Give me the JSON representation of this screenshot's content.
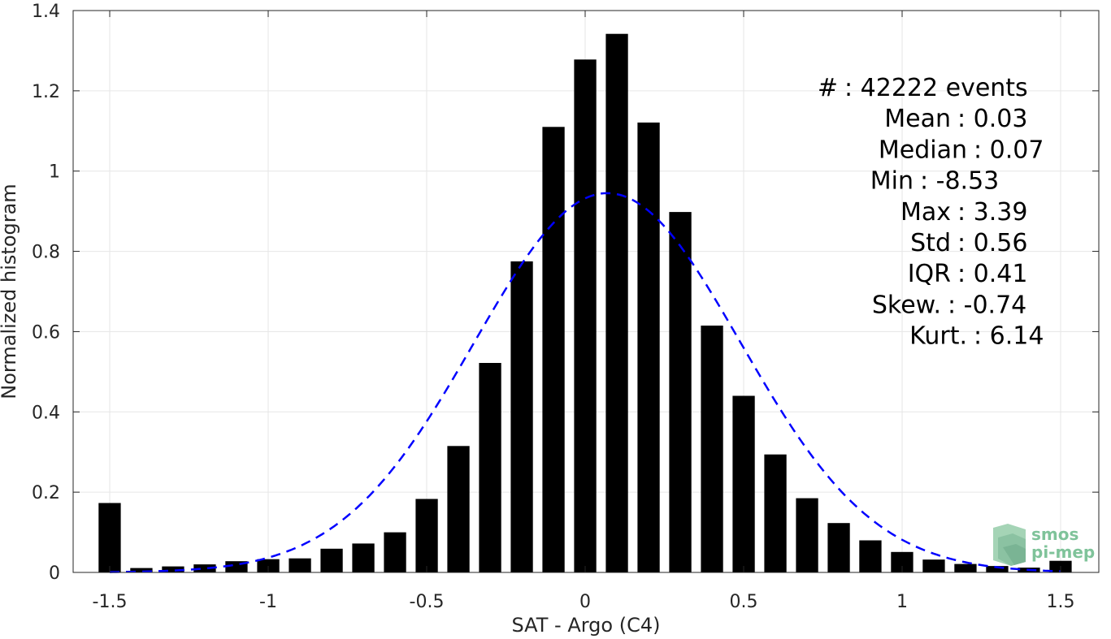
{
  "chart_data": {
    "type": "bar",
    "xlabel": "SAT - Argo (C4)",
    "ylabel": "Normalized histogram",
    "xlim": [
      -1.6,
      1.6
    ],
    "ylim": [
      0,
      1.4
    ],
    "xticks": [
      -1.5,
      -1,
      -0.5,
      0,
      0.5,
      1,
      1.5
    ],
    "xtick_labels": [
      "-1.5",
      "-1",
      "-0.5",
      "0",
      "0.5",
      "1",
      "1.5"
    ],
    "yticks": [
      0,
      0.2,
      0.4,
      0.6,
      0.8,
      1,
      1.2,
      1.4
    ],
    "ytick_labels": [
      "0",
      "0.2",
      "0.4",
      "0.6",
      "0.8",
      "1",
      "1.2",
      "1.4"
    ],
    "grid": true,
    "bar_color": "#000000",
    "bars": {
      "x": [
        -1.5,
        -1.4,
        -1.3,
        -1.2,
        -1.1,
        -1.0,
        -0.9,
        -0.8,
        -0.7,
        -0.6,
        -0.5,
        -0.4,
        -0.3,
        -0.2,
        -0.1,
        0.0,
        0.1,
        0.2,
        0.3,
        0.4,
        0.5,
        0.6,
        0.7,
        0.8,
        0.9,
        1.0,
        1.1,
        1.2,
        1.3,
        1.4,
        1.5
      ],
      "values": [
        0.173,
        0.011,
        0.015,
        0.02,
        0.028,
        0.033,
        0.035,
        0.059,
        0.072,
        0.1,
        0.183,
        0.315,
        0.522,
        0.775,
        1.11,
        1.278,
        1.342,
        1.121,
        0.898,
        0.615,
        0.44,
        0.294,
        0.185,
        0.123,
        0.08,
        0.051,
        0.032,
        0.021,
        0.016,
        0.012,
        0.029
      ]
    },
    "fit_curve": {
      "type": "gaussian",
      "color": "#0000ff",
      "style": "dashed",
      "mean": 0.07,
      "sigma": 0.42,
      "peak": 0.945,
      "x_range": [
        -1.5,
        1.5
      ]
    },
    "annotations": [
      {
        "label": "#",
        "value": ": 42222 events"
      },
      {
        "label": "Mean",
        "value": ": 0.03"
      },
      {
        "label": "Median",
        "value": ": 0.07"
      },
      {
        "label": "Min",
        "value": ": -8.53"
      },
      {
        "label": "Max",
        "value": ": 3.39"
      },
      {
        "label": "Std",
        "value": ": 0.56"
      },
      {
        "label": "IQR",
        "value": ": 0.41"
      },
      {
        "label": "Skew.",
        "value": ": -0.74"
      },
      {
        "label": "Kurt.",
        "value": ": 6.14"
      }
    ]
  },
  "logo": {
    "line1": "smos",
    "line2": "pi-mep",
    "color": "#7fc39a"
  }
}
